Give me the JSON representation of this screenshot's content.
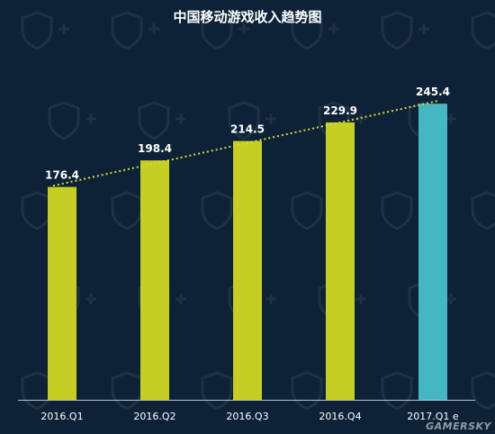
{
  "chart_data": {
    "type": "bar",
    "title": "中国移动游戏收入趋势图",
    "categories": [
      "2016.Q1",
      "2016.Q2",
      "2016.Q3",
      "2016.Q4",
      "2017.Q1 e"
    ],
    "values": [
      176.4,
      198.4,
      214.5,
      229.9,
      245.4
    ],
    "value_labels": [
      "176.4",
      "198.4",
      "214.5",
      "229.9",
      "245.4"
    ],
    "ylim": [
      0,
      300
    ],
    "grid": false,
    "trendline": "dotted",
    "colors": {
      "bar": "#c5ce23",
      "bar_estimate": "#45b7c1",
      "trend": "#d6dc3a",
      "axis": "#b8c2cc"
    }
  },
  "watermark": "GAMERSKY"
}
